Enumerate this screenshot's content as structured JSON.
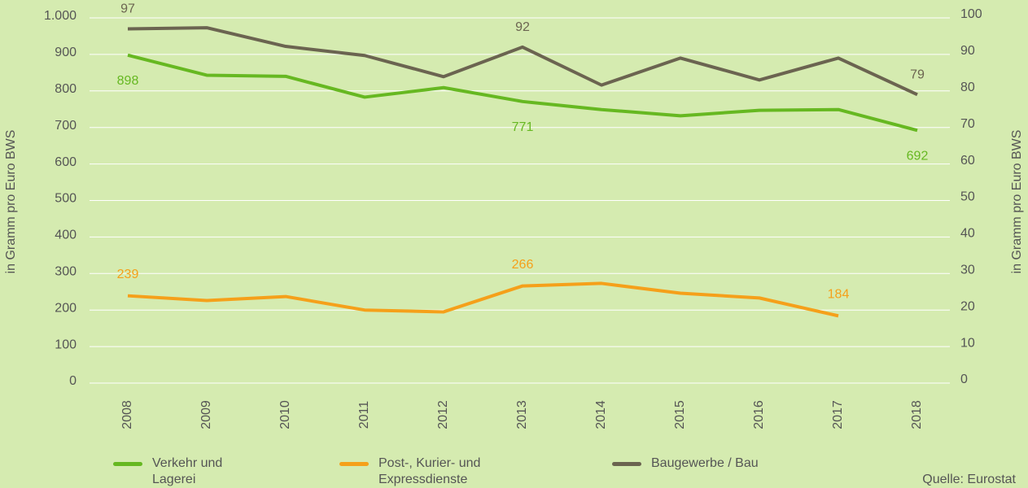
{
  "chart_data": {
    "type": "line",
    "categories": [
      "2008",
      "2009",
      "2010",
      "2011",
      "2012",
      "2013",
      "2014",
      "2015",
      "2016",
      "2017",
      "2018"
    ],
    "series": [
      {
        "name": "Verkehr und Lagerei",
        "color": "#66b821",
        "values": [
          898,
          843,
          840,
          783,
          809,
          771,
          749,
          732,
          747,
          749,
          692
        ],
        "value_labels": [
          "898",
          null,
          null,
          null,
          null,
          "771",
          null,
          null,
          null,
          null,
          "692"
        ]
      },
      {
        "name": "Post-, Kurier- und Expressdienste",
        "color": "#f5a01a",
        "values": [
          239,
          226,
          237,
          200,
          195,
          266,
          273,
          246,
          233,
          184,
          null
        ],
        "value_labels": [
          "239",
          null,
          null,
          null,
          null,
          "266",
          null,
          null,
          null,
          "184",
          null
        ]
      },
      {
        "name": "Baugewerbe / Bau",
        "color": "#6b6450",
        "axis": "y2",
        "values": [
          97,
          97.3,
          92.2,
          89.7,
          83.9,
          92,
          81.6,
          89,
          83,
          89,
          79
        ],
        "value_labels": [
          "97",
          null,
          null,
          null,
          null,
          "92",
          null,
          null,
          null,
          null,
          "79"
        ]
      }
    ],
    "ylim": [
      0,
      1000
    ],
    "yticks": [
      0,
      100,
      200,
      300,
      400,
      500,
      600,
      700,
      800,
      900,
      {
        "value": 1000,
        "label": "1.000"
      }
    ],
    "y2lim": [
      0,
      100
    ],
    "y2ticks": [
      0,
      10,
      20,
      30,
      40,
      50,
      60,
      70,
      80,
      90,
      100
    ],
    "ylabel": "in Gramm pro Euro BWS",
    "y2label": "in Gramm pro Euro BWS",
    "source": "Quelle: Eurostat",
    "grid": true
  }
}
